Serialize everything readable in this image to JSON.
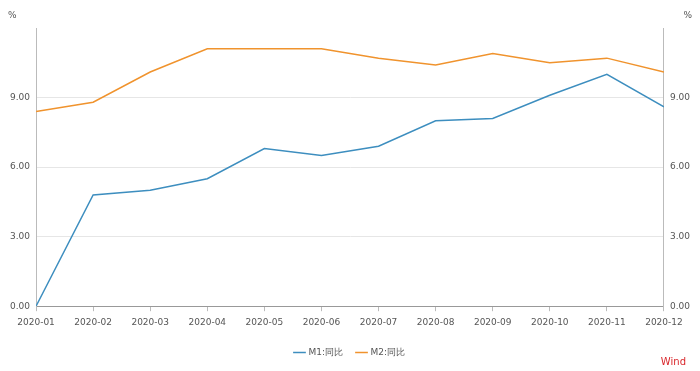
{
  "chart_data": {
    "type": "line",
    "categories": [
      "2020-01",
      "2020-02",
      "2020-03",
      "2020-04",
      "2020-05",
      "2020-06",
      "2020-07",
      "2020-08",
      "2020-09",
      "2020-10",
      "2020-11",
      "2020-12"
    ],
    "series": [
      {
        "name": "M1:同比",
        "color": "#3d8ebf",
        "values": [
          0.0,
          4.8,
          5.0,
          5.5,
          6.8,
          6.5,
          6.9,
          8.0,
          8.1,
          9.1,
          10.0,
          8.6
        ]
      },
      {
        "name": "M2:同比",
        "color": "#f0932d",
        "values": [
          8.4,
          8.8,
          10.1,
          11.1,
          11.1,
          11.1,
          10.7,
          10.4,
          10.9,
          10.5,
          10.7,
          10.1
        ]
      }
    ],
    "y_label": "%",
    "y2_label": "%",
    "ylim": [
      0,
      12
    ],
    "yticks": [
      {
        "value": 0,
        "label": "0.00"
      },
      {
        "value": 3,
        "label": "3.00"
      },
      {
        "value": 6,
        "label": "6.00"
      },
      {
        "value": 9,
        "label": "9.00"
      }
    ],
    "y2lim": [
      0,
      12
    ],
    "y2ticks": [
      {
        "value": 0,
        "label": "0.00"
      },
      {
        "value": 3,
        "label": "3.00"
      },
      {
        "value": 6,
        "label": "6.00"
      },
      {
        "value": 9,
        "label": "9.00"
      }
    ],
    "grid": true,
    "legend": "bottom",
    "source": "Wind"
  }
}
